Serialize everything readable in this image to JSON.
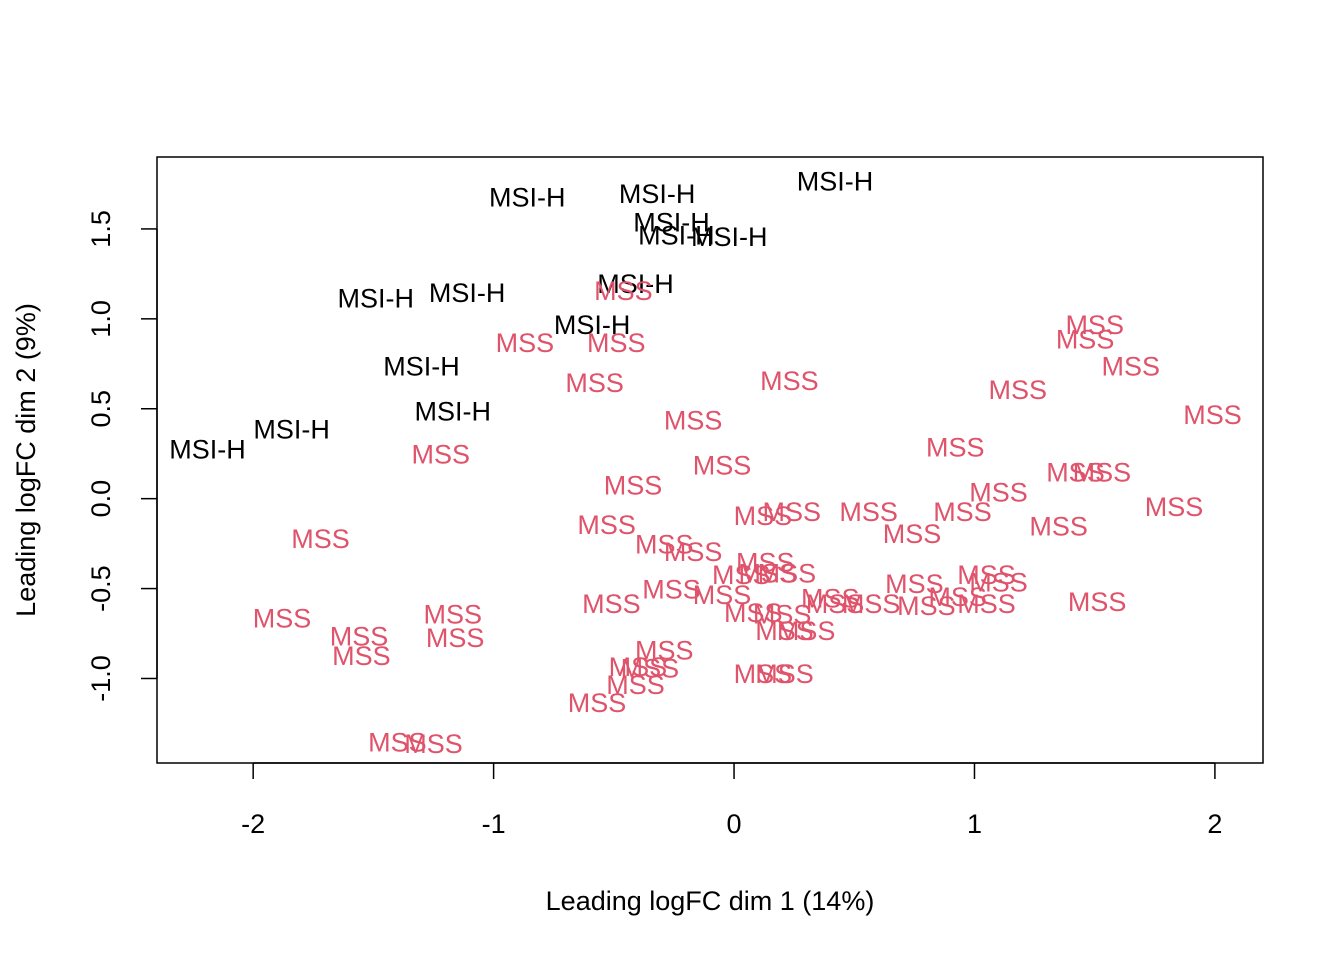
{
  "chart_data": {
    "type": "scatter",
    "title": "",
    "xlabel": "Leading logFC dim 1 (14%)",
    "ylabel": "Leading logFC dim 2 (9%)",
    "xlim": [
      -2.4,
      2.2
    ],
    "ylim": [
      -1.47,
      1.9
    ],
    "xticks": [
      -2,
      -1,
      0,
      1,
      2
    ],
    "yticks": [
      -1.0,
      -0.5,
      0.0,
      0.5,
      1.0,
      1.5
    ],
    "xtick_labels": [
      "-2",
      "-1",
      "0",
      "1",
      "2"
    ],
    "ytick_labels": [
      "-1.0",
      "-0.5",
      "0.0",
      "0.5",
      "1.0",
      "1.5"
    ],
    "grid": false,
    "legend": "none",
    "series": [
      {
        "name": "MSI-H",
        "color": "#000000",
        "points": [
          {
            "x": -2.19,
            "y": 0.28
          },
          {
            "x": -1.84,
            "y": 0.39
          },
          {
            "x": -1.49,
            "y": 1.12
          },
          {
            "x": -1.11,
            "y": 1.15
          },
          {
            "x": -1.3,
            "y": 0.74
          },
          {
            "x": -1.17,
            "y": 0.49
          },
          {
            "x": -0.86,
            "y": 1.68
          },
          {
            "x": -0.32,
            "y": 1.7
          },
          {
            "x": -0.59,
            "y": 0.97
          },
          {
            "x": -0.41,
            "y": 1.2
          },
          {
            "x": -0.26,
            "y": 1.54
          },
          {
            "x": -0.24,
            "y": 1.47
          },
          {
            "x": -0.02,
            "y": 1.46
          },
          {
            "x": 0.42,
            "y": 1.77
          }
        ]
      },
      {
        "name": "MSS",
        "color": "#DF536B",
        "points": [
          {
            "x": -1.72,
            "y": -0.22
          },
          {
            "x": -1.88,
            "y": -0.66
          },
          {
            "x": -1.56,
            "y": -0.76
          },
          {
            "x": -1.55,
            "y": -0.87
          },
          {
            "x": -1.17,
            "y": -0.64
          },
          {
            "x": -1.16,
            "y": -0.77
          },
          {
            "x": -1.4,
            "y": -1.35
          },
          {
            "x": -1.25,
            "y": -1.36
          },
          {
            "x": -1.22,
            "y": 0.25
          },
          {
            "x": -0.87,
            "y": 0.87
          },
          {
            "x": -0.49,
            "y": 0.87
          },
          {
            "x": -0.58,
            "y": 0.65
          },
          {
            "x": -0.46,
            "y": 1.16
          },
          {
            "x": -0.17,
            "y": 0.44
          },
          {
            "x": -0.05,
            "y": 0.19
          },
          {
            "x": -0.42,
            "y": 0.08
          },
          {
            "x": -0.53,
            "y": -0.14
          },
          {
            "x": -0.29,
            "y": -0.25
          },
          {
            "x": -0.17,
            "y": -0.29
          },
          {
            "x": -0.51,
            "y": -0.58
          },
          {
            "x": -0.26,
            "y": -0.5
          },
          {
            "x": -0.05,
            "y": -0.53
          },
          {
            "x": 0.03,
            "y": -0.42
          },
          {
            "x": 0.14,
            "y": -0.41
          },
          {
            "x": 0.22,
            "y": -0.41
          },
          {
            "x": 0.13,
            "y": -0.35
          },
          {
            "x": 0.08,
            "y": -0.63
          },
          {
            "x": 0.2,
            "y": -0.64
          },
          {
            "x": 0.21,
            "y": -0.73
          },
          {
            "x": 0.3,
            "y": -0.73
          },
          {
            "x": 0.4,
            "y": -0.55
          },
          {
            "x": 0.42,
            "y": -0.58
          },
          {
            "x": 0.57,
            "y": -0.58
          },
          {
            "x": 0.75,
            "y": -0.47
          },
          {
            "x": 0.8,
            "y": -0.59
          },
          {
            "x": 0.93,
            "y": -0.54
          },
          {
            "x": 1.05,
            "y": -0.58
          },
          {
            "x": 1.05,
            "y": -0.42
          },
          {
            "x": 1.1,
            "y": -0.46
          },
          {
            "x": 1.51,
            "y": -0.57
          },
          {
            "x": -0.29,
            "y": -0.84
          },
          {
            "x": -0.4,
            "y": -0.93
          },
          {
            "x": -0.35,
            "y": -0.94
          },
          {
            "x": -0.41,
            "y": -1.03
          },
          {
            "x": -0.57,
            "y": -1.13
          },
          {
            "x": 0.12,
            "y": -0.97
          },
          {
            "x": 0.21,
            "y": -0.97
          },
          {
            "x": 0.12,
            "y": -0.09
          },
          {
            "x": 0.24,
            "y": -0.07
          },
          {
            "x": 0.56,
            "y": -0.07
          },
          {
            "x": 0.74,
            "y": -0.19
          },
          {
            "x": 0.95,
            "y": -0.07
          },
          {
            "x": 1.1,
            "y": 0.04
          },
          {
            "x": 1.35,
            "y": -0.15
          },
          {
            "x": 0.23,
            "y": 0.66
          },
          {
            "x": 0.92,
            "y": 0.29
          },
          {
            "x": 1.18,
            "y": 0.61
          },
          {
            "x": 1.42,
            "y": 0.15
          },
          {
            "x": 1.53,
            "y": 0.15
          },
          {
            "x": 1.5,
            "y": 0.97
          },
          {
            "x": 1.46,
            "y": 0.89
          },
          {
            "x": 1.65,
            "y": 0.74
          },
          {
            "x": 1.99,
            "y": 0.47
          },
          {
            "x": 1.83,
            "y": -0.04
          }
        ]
      }
    ]
  }
}
